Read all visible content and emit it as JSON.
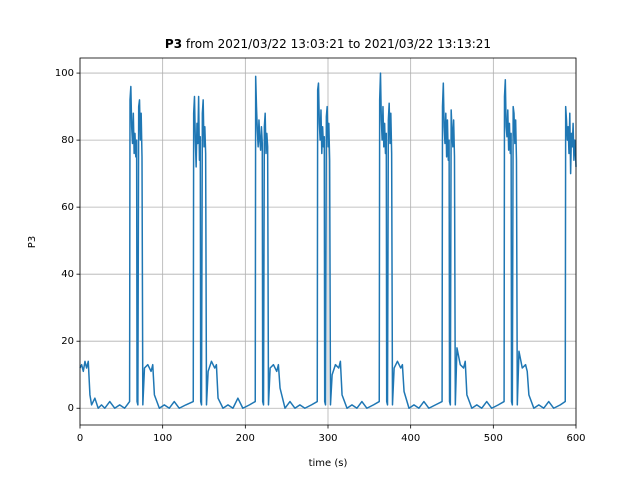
{
  "chart_data": {
    "type": "line",
    "title_name": "P3",
    "title_range": "from 2021/03/22 13:03:21 to 2021/03/22 13:13:21",
    "xlabel": "time (s)",
    "ylabel": "P3",
    "color": "#1f77b4",
    "grid": true,
    "xlim": [
      0,
      600
    ],
    "xticks": [
      0,
      100,
      200,
      300,
      400,
      500,
      600
    ],
    "ylim": [
      -5,
      104.5
    ],
    "yticks": [
      0,
      20,
      40,
      60,
      80,
      100
    ],
    "x": [
      0,
      2,
      4,
      6,
      8,
      10,
      12,
      14,
      18,
      22,
      26,
      30,
      36,
      42,
      48,
      54,
      60,
      60.5,
      61.5,
      62.5,
      63.5,
      64.5,
      65.5,
      66.5,
      67.5,
      68.5,
      69,
      70,
      71,
      72,
      73,
      74,
      75,
      76,
      78,
      82,
      86,
      88,
      90,
      96,
      102,
      108,
      114,
      120,
      128,
      137,
      137.5,
      138.5,
      139.5,
      140.5,
      141.5,
      142.5,
      143.5,
      144.5,
      145.5,
      146,
      147,
      148,
      149,
      150,
      151,
      152,
      153,
      155,
      159,
      163,
      165,
      167,
      173,
      179,
      185,
      191,
      197,
      205,
      212,
      212.5,
      213.5,
      214.5,
      215.5,
      216.5,
      217.5,
      218.5,
      219.5,
      220.5,
      221,
      222,
      223,
      224,
      225,
      226,
      227,
      228,
      230,
      234,
      238,
      240,
      242,
      248,
      254,
      260,
      266,
      272,
      280,
      287,
      287.5,
      288.5,
      289.5,
      290.5,
      291.5,
      292.5,
      293.5,
      294.5,
      295.5,
      296,
      297,
      298,
      299,
      300,
      301,
      302,
      303,
      305,
      309,
      313,
      315,
      317,
      323,
      329,
      335,
      341,
      347,
      355,
      362,
      362.5,
      363.5,
      364.5,
      365.5,
      366.5,
      367.5,
      368.5,
      369.5,
      370.5,
      371,
      372,
      373,
      374,
      375,
      376,
      377,
      378,
      380,
      384,
      388,
      390,
      392,
      398,
      404,
      410,
      416,
      422,
      430,
      438,
      438.5,
      439.5,
      440.5,
      441.5,
      442.5,
      443.5,
      444.5,
      445.5,
      446.5,
      447,
      448,
      449,
      450,
      451,
      452,
      453,
      454,
      456,
      460,
      464,
      466,
      468,
      474,
      480,
      486,
      492,
      498,
      506,
      513,
      513.5,
      514.5,
      515.5,
      516.5,
      517.5,
      518.5,
      519.5,
      520.5,
      521.5,
      522,
      523,
      524,
      525,
      526,
      527,
      528,
      529,
      531,
      535,
      539,
      541,
      543,
      549,
      555,
      561,
      567,
      573,
      581,
      587,
      587.5,
      588.5,
      589.5,
      590.5,
      591.5,
      592.5,
      593.5,
      594.5,
      595.5,
      596.5,
      597.5,
      598.5,
      599.5,
      600
    ],
    "values": [
      12,
      13,
      11,
      14,
      12,
      14,
      4,
      1,
      3,
      0,
      1,
      0,
      2,
      0,
      1,
      0,
      2,
      92,
      96,
      84,
      79,
      88,
      76,
      82,
      75,
      80,
      2,
      1,
      90,
      92,
      80,
      88,
      75,
      1,
      12,
      13,
      11,
      13,
      4,
      0,
      1,
      0,
      2,
      0,
      1,
      2,
      88,
      93,
      80,
      72,
      85,
      79,
      93,
      74,
      81,
      2,
      1,
      88,
      92,
      78,
      84,
      76,
      1,
      11,
      14,
      12,
      13,
      3,
      0,
      1,
      0,
      3,
      0,
      1,
      2,
      99,
      90,
      83,
      78,
      86,
      80,
      77,
      84,
      79,
      2,
      1,
      84,
      88,
      76,
      82,
      78,
      1,
      12,
      13,
      11,
      13,
      6,
      0,
      2,
      0,
      1,
      0,
      1,
      2,
      95,
      97,
      85,
      80,
      89,
      76,
      84,
      78,
      81,
      2,
      1,
      87,
      90,
      78,
      85,
      74,
      1,
      10,
      13,
      12,
      14,
      4,
      0,
      1,
      0,
      2,
      0,
      1,
      2,
      92,
      100,
      86,
      80,
      90,
      78,
      85,
      76,
      82,
      2,
      1,
      86,
      91,
      79,
      88,
      76,
      1,
      12,
      14,
      12,
      13,
      5,
      0,
      1,
      0,
      2,
      0,
      1,
      2,
      90,
      97,
      84,
      79,
      88,
      75,
      86,
      74,
      80,
      2,
      1,
      89,
      83,
      78,
      86,
      75,
      1,
      18,
      13,
      12,
      14,
      4,
      0,
      1,
      0,
      2,
      0,
      1,
      2,
      93,
      98,
      84,
      81,
      89,
      77,
      85,
      76,
      82,
      2,
      1,
      90,
      88,
      79,
      86,
      74,
      1,
      17,
      12,
      13,
      11,
      4,
      0,
      1,
      0,
      2,
      0,
      1,
      2,
      90,
      86,
      80,
      84,
      76,
      88,
      70,
      82,
      78,
      85,
      74,
      80,
      76,
      72
    ]
  }
}
